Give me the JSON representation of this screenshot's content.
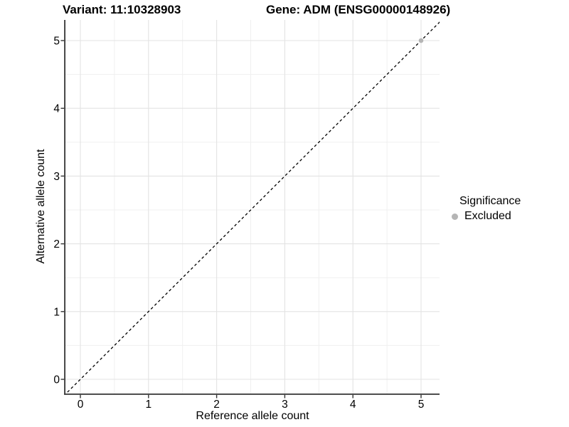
{
  "header": {
    "title_left": "Variant: 11:10328903",
    "title_right": "Gene: ADM (ENSG00000148926)"
  },
  "legend": {
    "title": "Significance",
    "items": [
      {
        "label": "Excluded",
        "color": "#b5b5b5"
      }
    ]
  },
  "chart_data": {
    "type": "scatter",
    "title": "Variant: 11:10328903   Gene: ADM (ENSG00000148926)",
    "xlabel": "Reference allele count",
    "ylabel": "Alternative allele count",
    "xlim": [
      -0.25,
      5.25
    ],
    "ylim": [
      -0.25,
      5.25
    ],
    "xticks": [
      0,
      1,
      2,
      3,
      4,
      5
    ],
    "yticks": [
      0,
      1,
      2,
      3,
      4,
      5
    ],
    "minor_grid_step": 0.5,
    "grid": "major and minor gridlines, light gray on white panel",
    "legend_position": "right",
    "legend_title": "Significance",
    "series": [
      {
        "name": "Excluded",
        "color": "#b5b5b5",
        "marker": "circle",
        "points": [
          {
            "x": 5,
            "y": 5
          }
        ]
      }
    ],
    "reference_line": {
      "kind": "identity_y_equals_x",
      "style": "dashed",
      "color": "#000000",
      "from": [
        -0.35,
        -0.35
      ],
      "to": [
        5.45,
        5.45
      ]
    }
  },
  "colors": {
    "background": "#ffffff",
    "grid_major": "#e3e3e3",
    "grid_minor": "#f0f0f0",
    "axis_line": "#333333",
    "tick_mark": "#333333",
    "tick_label": "#000000",
    "point": "#b5b5b5"
  }
}
